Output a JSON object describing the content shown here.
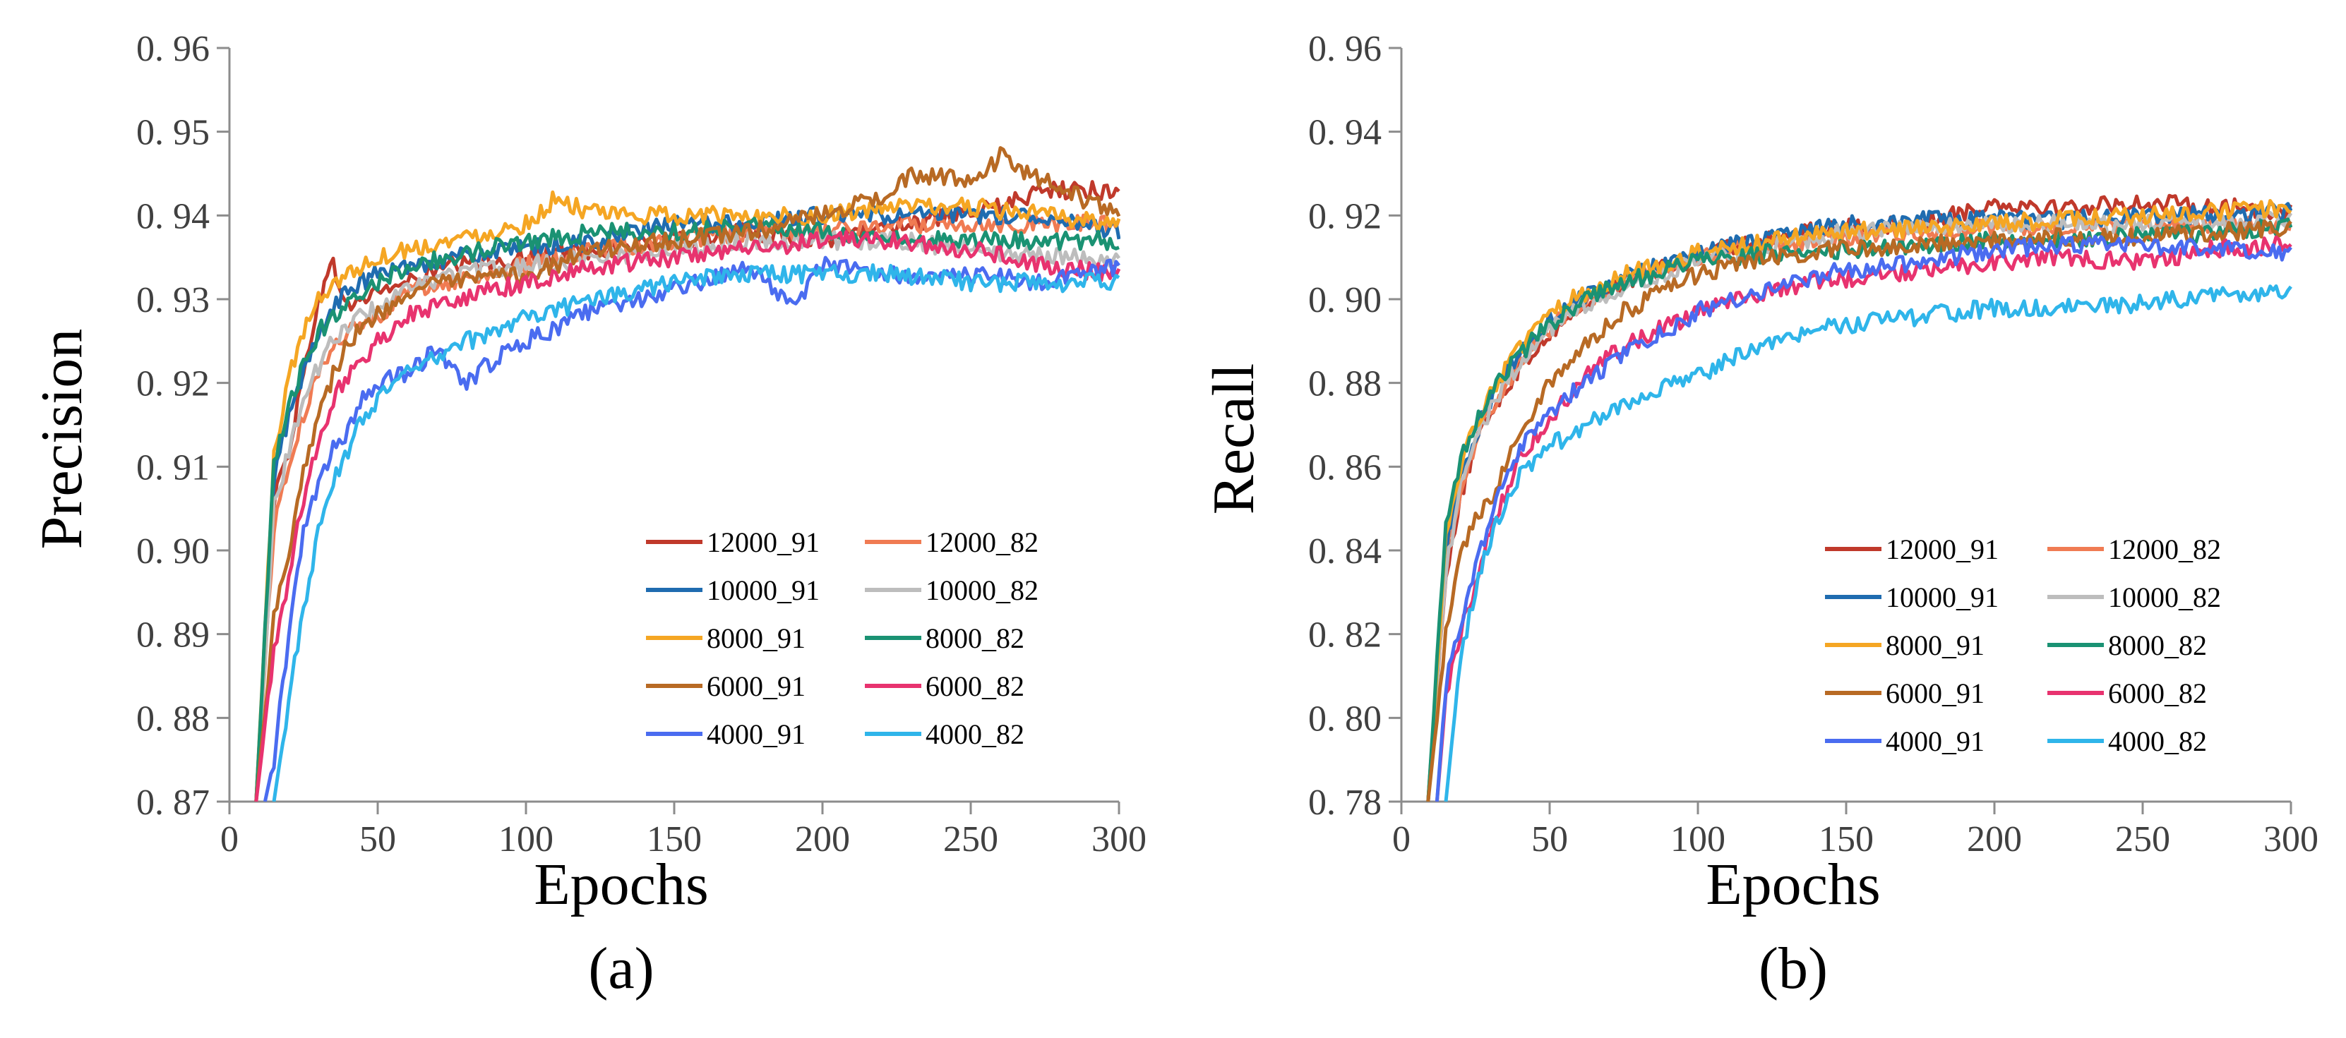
{
  "chart_data": [
    {
      "type": "line",
      "caption": "(a)",
      "xlabel": "Epochs",
      "ylabel": "Precision",
      "xlim": [
        0,
        300
      ],
      "ylim": [
        0.87,
        0.96
      ],
      "xticks": [
        0,
        50,
        100,
        150,
        200,
        250,
        300
      ],
      "yticks": [
        0.87,
        0.88,
        0.89,
        0.9,
        0.91,
        0.92,
        0.93,
        0.94,
        0.95,
        0.96
      ],
      "xtick_labels": [
        "0",
        "50",
        "100",
        "150",
        "200",
        "250",
        "300"
      ],
      "ytick_labels": [
        "0. 87",
        "0. 88",
        "0. 89",
        "0. 90",
        "0. 91",
        "0. 92",
        "0. 93",
        "0. 94",
        "0. 95",
        "0. 96"
      ],
      "grid": false,
      "legend_position": "bottom-right",
      "series": [
        {
          "name": "12000_91",
          "color": "#C0392B",
          "x": [
            9,
            15,
            20,
            25,
            30,
            35,
            40,
            50,
            60,
            75,
            100,
            125,
            150,
            175,
            200,
            225,
            250,
            275,
            300
          ],
          "y": [
            0.87,
            0.906,
            0.912,
            0.921,
            0.93,
            0.934,
            0.929,
            0.931,
            0.932,
            0.934,
            0.935,
            0.936,
            0.937,
            0.938,
            0.937,
            0.939,
            0.94,
            0.943,
            0.943
          ]
        },
        {
          "name": "12000_82",
          "color": "#F07B53",
          "x": [
            9,
            15,
            20,
            25,
            30,
            35,
            40,
            50,
            60,
            75,
            100,
            125,
            150,
            175,
            200,
            225,
            250,
            275,
            300
          ],
          "y": [
            0.87,
            0.903,
            0.91,
            0.916,
            0.921,
            0.925,
            0.926,
            0.928,
            0.931,
            0.932,
            0.934,
            0.936,
            0.937,
            0.938,
            0.938,
            0.939,
            0.939,
            0.939,
            0.939
          ]
        },
        {
          "name": "10000_91",
          "color": "#1F6CB0",
          "x": [
            9,
            15,
            20,
            25,
            30,
            35,
            40,
            50,
            60,
            75,
            100,
            125,
            150,
            175,
            200,
            225,
            250,
            275,
            300
          ],
          "y": [
            0.87,
            0.909,
            0.916,
            0.921,
            0.926,
            0.929,
            0.931,
            0.933,
            0.934,
            0.935,
            0.936,
            0.937,
            0.939,
            0.939,
            0.94,
            0.94,
            0.94,
            0.94,
            0.938
          ]
        },
        {
          "name": "10000_82",
          "color": "#BDBDBD",
          "x": [
            9,
            15,
            20,
            25,
            30,
            35,
            40,
            50,
            60,
            75,
            100,
            125,
            150,
            175,
            200,
            225,
            250,
            275,
            300
          ],
          "y": [
            0.87,
            0.905,
            0.912,
            0.918,
            0.922,
            0.925,
            0.927,
            0.929,
            0.931,
            0.933,
            0.934,
            0.935,
            0.936,
            0.937,
            0.937,
            0.937,
            0.936,
            0.935,
            0.935
          ]
        },
        {
          "name": "8000_91",
          "color": "#F5A623",
          "x": [
            9,
            15,
            20,
            25,
            30,
            35,
            40,
            50,
            60,
            75,
            100,
            110,
            125,
            150,
            175,
            200,
            225,
            250,
            275,
            300
          ],
          "y": [
            0.87,
            0.911,
            0.921,
            0.926,
            0.93,
            0.932,
            0.933,
            0.935,
            0.936,
            0.937,
            0.939,
            0.942,
            0.94,
            0.94,
            0.94,
            0.94,
            0.941,
            0.941,
            0.94,
            0.939
          ]
        },
        {
          "name": "8000_82",
          "color": "#1A9273",
          "x": [
            9,
            15,
            20,
            25,
            30,
            35,
            40,
            50,
            60,
            75,
            100,
            125,
            150,
            175,
            200,
            225,
            250,
            275,
            300
          ],
          "y": [
            0.87,
            0.91,
            0.917,
            0.922,
            0.926,
            0.928,
            0.93,
            0.932,
            0.934,
            0.935,
            0.937,
            0.938,
            0.938,
            0.939,
            0.938,
            0.937,
            0.937,
            0.937,
            0.937
          ]
        },
        {
          "name": "6000_91",
          "color": "#B86A24",
          "x": [
            9,
            15,
            20,
            25,
            30,
            35,
            40,
            50,
            60,
            75,
            100,
            125,
            150,
            175,
            200,
            225,
            230,
            250,
            260,
            275,
            300
          ],
          "y": [
            0.87,
            0.892,
            0.9,
            0.91,
            0.916,
            0.921,
            0.925,
            0.928,
            0.931,
            0.932,
            0.933,
            0.936,
            0.937,
            0.938,
            0.94,
            0.943,
            0.945,
            0.944,
            0.947,
            0.944,
            0.94
          ]
        },
        {
          "name": "6000_82",
          "color": "#E8336F",
          "x": [
            9,
            15,
            20,
            25,
            30,
            35,
            40,
            50,
            60,
            75,
            100,
            125,
            150,
            175,
            200,
            225,
            250,
            275,
            300
          ],
          "y": [
            0.87,
            0.888,
            0.897,
            0.906,
            0.913,
            0.918,
            0.921,
            0.925,
            0.928,
            0.93,
            0.932,
            0.934,
            0.935,
            0.936,
            0.937,
            0.937,
            0.936,
            0.934,
            0.933
          ]
        },
        {
          "name": "4000_91",
          "color": "#4A6CF0",
          "x": [
            12,
            15,
            20,
            25,
            30,
            35,
            40,
            45,
            50,
            60,
            70,
            80,
            90,
            100,
            125,
            150,
            175,
            190,
            200,
            225,
            250,
            275,
            300
          ],
          "y": [
            0.87,
            0.875,
            0.89,
            0.902,
            0.908,
            0.912,
            0.914,
            0.918,
            0.92,
            0.921,
            0.924,
            0.92,
            0.923,
            0.925,
            0.929,
            0.931,
            0.934,
            0.929,
            0.934,
            0.933,
            0.933,
            0.932,
            0.934
          ]
        },
        {
          "name": "4000_82",
          "color": "#2FB5EA",
          "x": [
            15,
            20,
            25,
            30,
            35,
            40,
            45,
            50,
            60,
            70,
            80,
            90,
            100,
            125,
            150,
            175,
            200,
            225,
            250,
            275,
            300
          ],
          "y": [
            0.87,
            0.882,
            0.893,
            0.902,
            0.908,
            0.912,
            0.916,
            0.918,
            0.921,
            0.923,
            0.925,
            0.926,
            0.928,
            0.93,
            0.932,
            0.933,
            0.933,
            0.933,
            0.932,
            0.932,
            0.932
          ]
        }
      ]
    },
    {
      "type": "line",
      "caption": "(b)",
      "xlabel": "Epochs",
      "ylabel": "Recall",
      "xlim": [
        0,
        300
      ],
      "ylim": [
        0.78,
        0.96
      ],
      "xticks": [
        0,
        50,
        100,
        150,
        200,
        250,
        300
      ],
      "yticks": [
        0.78,
        0.8,
        0.82,
        0.84,
        0.86,
        0.88,
        0.9,
        0.92,
        0.94,
        0.96
      ],
      "xtick_labels": [
        "0",
        "50",
        "100",
        "150",
        "200",
        "250",
        "300"
      ],
      "ytick_labels": [
        "0. 78",
        "0. 80",
        "0. 82",
        "0. 84",
        "0. 86",
        "0. 88",
        "0. 90",
        "0. 92",
        "0. 94",
        "0. 96"
      ],
      "grid": false,
      "legend_position": "bottom-right",
      "series": [
        {
          "name": "12000_91",
          "color": "#C0392B",
          "x": [
            9,
            15,
            20,
            25,
            30,
            40,
            50,
            60,
            75,
            100,
            125,
            150,
            175,
            200,
            225,
            250,
            275,
            300
          ],
          "y": [
            0.78,
            0.835,
            0.853,
            0.865,
            0.873,
            0.884,
            0.892,
            0.898,
            0.904,
            0.91,
            0.915,
            0.917,
            0.918,
            0.923,
            0.922,
            0.923,
            0.922,
            0.921
          ]
        },
        {
          "name": "12000_82",
          "color": "#F07B53",
          "x": [
            9,
            15,
            20,
            25,
            30,
            40,
            50,
            60,
            75,
            100,
            125,
            150,
            175,
            200,
            225,
            250,
            275,
            300
          ],
          "y": [
            0.78,
            0.838,
            0.855,
            0.866,
            0.874,
            0.885,
            0.893,
            0.899,
            0.904,
            0.91,
            0.913,
            0.915,
            0.916,
            0.917,
            0.917,
            0.917,
            0.918,
            0.918
          ]
        },
        {
          "name": "10000_91",
          "color": "#1F6CB0",
          "x": [
            9,
            15,
            20,
            25,
            30,
            40,
            50,
            60,
            75,
            100,
            125,
            150,
            175,
            200,
            225,
            250,
            275,
            300
          ],
          "y": [
            0.78,
            0.84,
            0.858,
            0.868,
            0.876,
            0.887,
            0.895,
            0.9,
            0.905,
            0.911,
            0.915,
            0.918,
            0.919,
            0.919,
            0.919,
            0.92,
            0.92,
            0.921
          ]
        },
        {
          "name": "10000_82",
          "color": "#BDBDBD",
          "x": [
            9,
            15,
            20,
            25,
            30,
            40,
            50,
            60,
            75,
            100,
            125,
            150,
            175,
            200,
            225,
            250,
            275,
            300
          ],
          "y": [
            0.78,
            0.836,
            0.855,
            0.866,
            0.874,
            0.885,
            0.893,
            0.898,
            0.903,
            0.909,
            0.913,
            0.916,
            0.917,
            0.918,
            0.918,
            0.918,
            0.918,
            0.919
          ]
        },
        {
          "name": "8000_91",
          "color": "#F5A623",
          "x": [
            9,
            15,
            20,
            25,
            30,
            40,
            50,
            60,
            75,
            100,
            125,
            150,
            175,
            200,
            225,
            250,
            275,
            300
          ],
          "y": [
            0.78,
            0.842,
            0.86,
            0.87,
            0.878,
            0.888,
            0.896,
            0.901,
            0.906,
            0.911,
            0.914,
            0.916,
            0.917,
            0.918,
            0.919,
            0.92,
            0.921,
            0.922
          ]
        },
        {
          "name": "8000_82",
          "color": "#1A9273",
          "x": [
            9,
            15,
            20,
            25,
            30,
            40,
            50,
            60,
            75,
            100,
            125,
            150,
            175,
            200,
            225,
            250,
            275,
            300
          ],
          "y": [
            0.78,
            0.845,
            0.862,
            0.871,
            0.878,
            0.887,
            0.894,
            0.899,
            0.904,
            0.909,
            0.911,
            0.912,
            0.913,
            0.914,
            0.914,
            0.915,
            0.916,
            0.917
          ]
        },
        {
          "name": "6000_91",
          "color": "#B86A24",
          "x": [
            9,
            15,
            20,
            25,
            30,
            40,
            50,
            60,
            75,
            100,
            125,
            150,
            175,
            200,
            225,
            250,
            275,
            300
          ],
          "y": [
            0.78,
            0.82,
            0.838,
            0.848,
            0.852,
            0.868,
            0.88,
            0.888,
            0.897,
            0.906,
            0.91,
            0.912,
            0.913,
            0.914,
            0.915,
            0.915,
            0.916,
            0.917
          ]
        },
        {
          "name": "6000_82",
          "color": "#E8336F",
          "x": [
            12,
            15,
            20,
            25,
            30,
            40,
            50,
            60,
            75,
            100,
            125,
            150,
            175,
            200,
            225,
            250,
            275,
            300
          ],
          "y": [
            0.78,
            0.805,
            0.82,
            0.832,
            0.845,
            0.862,
            0.872,
            0.88,
            0.889,
            0.897,
            0.902,
            0.905,
            0.907,
            0.909,
            0.91,
            0.909,
            0.912,
            0.913
          ]
        },
        {
          "name": "4000_91",
          "color": "#4A6CF0",
          "x": [
            12,
            15,
            20,
            25,
            30,
            40,
            50,
            60,
            75,
            100,
            125,
            150,
            175,
            200,
            225,
            250,
            275,
            300
          ],
          "y": [
            0.78,
            0.808,
            0.823,
            0.836,
            0.848,
            0.864,
            0.873,
            0.879,
            0.887,
            0.897,
            0.903,
            0.907,
            0.909,
            0.912,
            0.913,
            0.913,
            0.912,
            0.911
          ]
        },
        {
          "name": "4000_82",
          "color": "#2FB5EA",
          "x": [
            15,
            20,
            25,
            30,
            40,
            50,
            60,
            75,
            100,
            125,
            150,
            175,
            200,
            225,
            250,
            275,
            300
          ],
          "y": [
            0.78,
            0.815,
            0.83,
            0.843,
            0.858,
            0.865,
            0.869,
            0.875,
            0.882,
            0.89,
            0.894,
            0.896,
            0.898,
            0.898,
            0.899,
            0.901,
            0.901
          ]
        }
      ]
    }
  ]
}
